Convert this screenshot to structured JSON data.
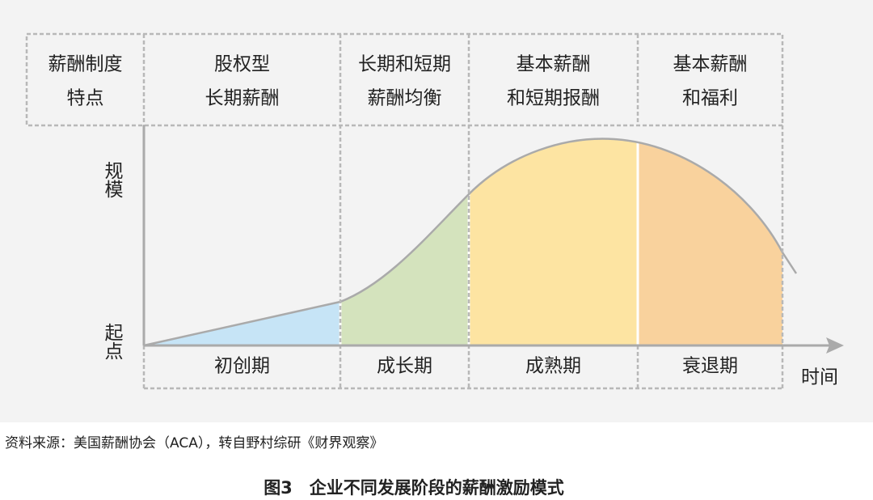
{
  "header": {
    "cells": [
      {
        "lines": [
          "薪酬制度",
          "特点"
        ]
      },
      {
        "lines": [
          "股权型",
          "长期薪酬"
        ]
      },
      {
        "lines": [
          "长期和短期",
          "薪酬均衡"
        ]
      },
      {
        "lines": [
          "基本薪酬",
          "和短期报酬"
        ]
      },
      {
        "lines": [
          "基本薪酬",
          "和福利"
        ]
      }
    ]
  },
  "axes": {
    "y_top": "规模",
    "y_bottom": "起点",
    "x": "时间"
  },
  "stages": [
    "初创期",
    "成长期",
    "成熟期",
    "衰退期"
  ],
  "source": "资料来源：美国薪酬协会（ACA），转自野村综研《财界观察》",
  "caption": "图3　企业不同发展阶段的薪酬激励模式"
}
